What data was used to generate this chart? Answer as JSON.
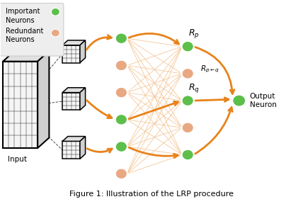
{
  "fig_width": 4.28,
  "fig_height": 2.88,
  "dpi": 100,
  "bg_color": "#ffffff",
  "orange": "#E8821A",
  "orange_faint": "#F5C89A",
  "green": "#5CBF4A",
  "salmon": "#E8A882",
  "black": "#1a1a1a",
  "legend_bg": "#eeeeee",
  "legend_ec": "#cccccc",
  "title": "Figure 1: Illustration of the LRP procedure",
  "title_fs": 8,
  "label_Rp": "$R_p$",
  "label_Rpq": "$R_{p\\leftarrow q}$",
  "label_Rq": "$R_q$",
  "label_output": "Output\nNeuron",
  "label_input": "Input",
  "label_important": "Important\nNeurons",
  "label_redundant": "Redundant\nNeurons",
  "xlim": [
    0,
    10
  ],
  "ylim": [
    0,
    7.5
  ]
}
